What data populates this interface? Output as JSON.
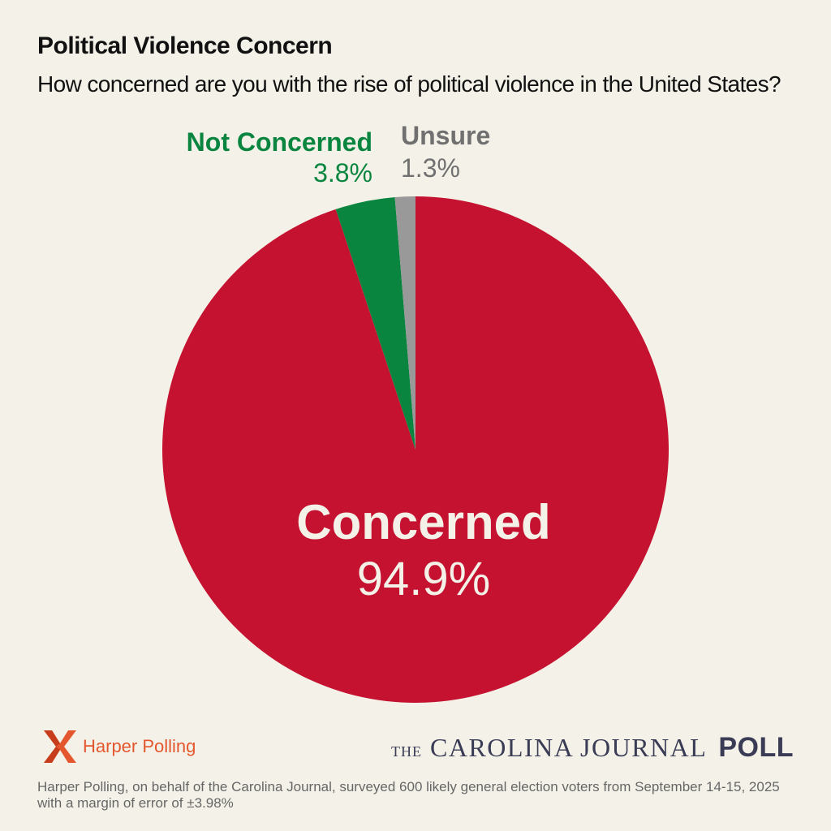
{
  "header": {
    "title": "Political Violence Concern",
    "subtitle": "How concerned are you with the rise of political violence in the United States?"
  },
  "chart_data": {
    "type": "pie",
    "title": "Political Violence Concern",
    "subtitle": "How concerned are you with the rise of political violence in the United States?",
    "slices": [
      {
        "label": "Concerned",
        "value": 94.9,
        "value_label": "94.9%",
        "color": "#c41230",
        "label_color": "#f4f2e8"
      },
      {
        "label": "Not Concerned",
        "value": 3.8,
        "value_label": "3.8%",
        "color": "#0a8540",
        "label_color": "#0a8540"
      },
      {
        "label": "Unsure",
        "value": 1.3,
        "value_label": "1.3%",
        "color": "#999999",
        "label_color": "#707070"
      }
    ],
    "start_direction": "top",
    "order": "counterclockwise-from-top-for-small-slices",
    "legend": "none"
  },
  "footer": {
    "pollster_name": "Harper Polling",
    "pollster_color": "#e4572e",
    "journal_the": "THE",
    "journal_name": "CAROLINA JOURNAL",
    "journal_poll": "POLL",
    "note": "Harper Polling, on behalf of the Carolina Journal, surveyed 600 likely general election voters from September 14-15, 2025 with a margin of error of ±3.98%"
  }
}
